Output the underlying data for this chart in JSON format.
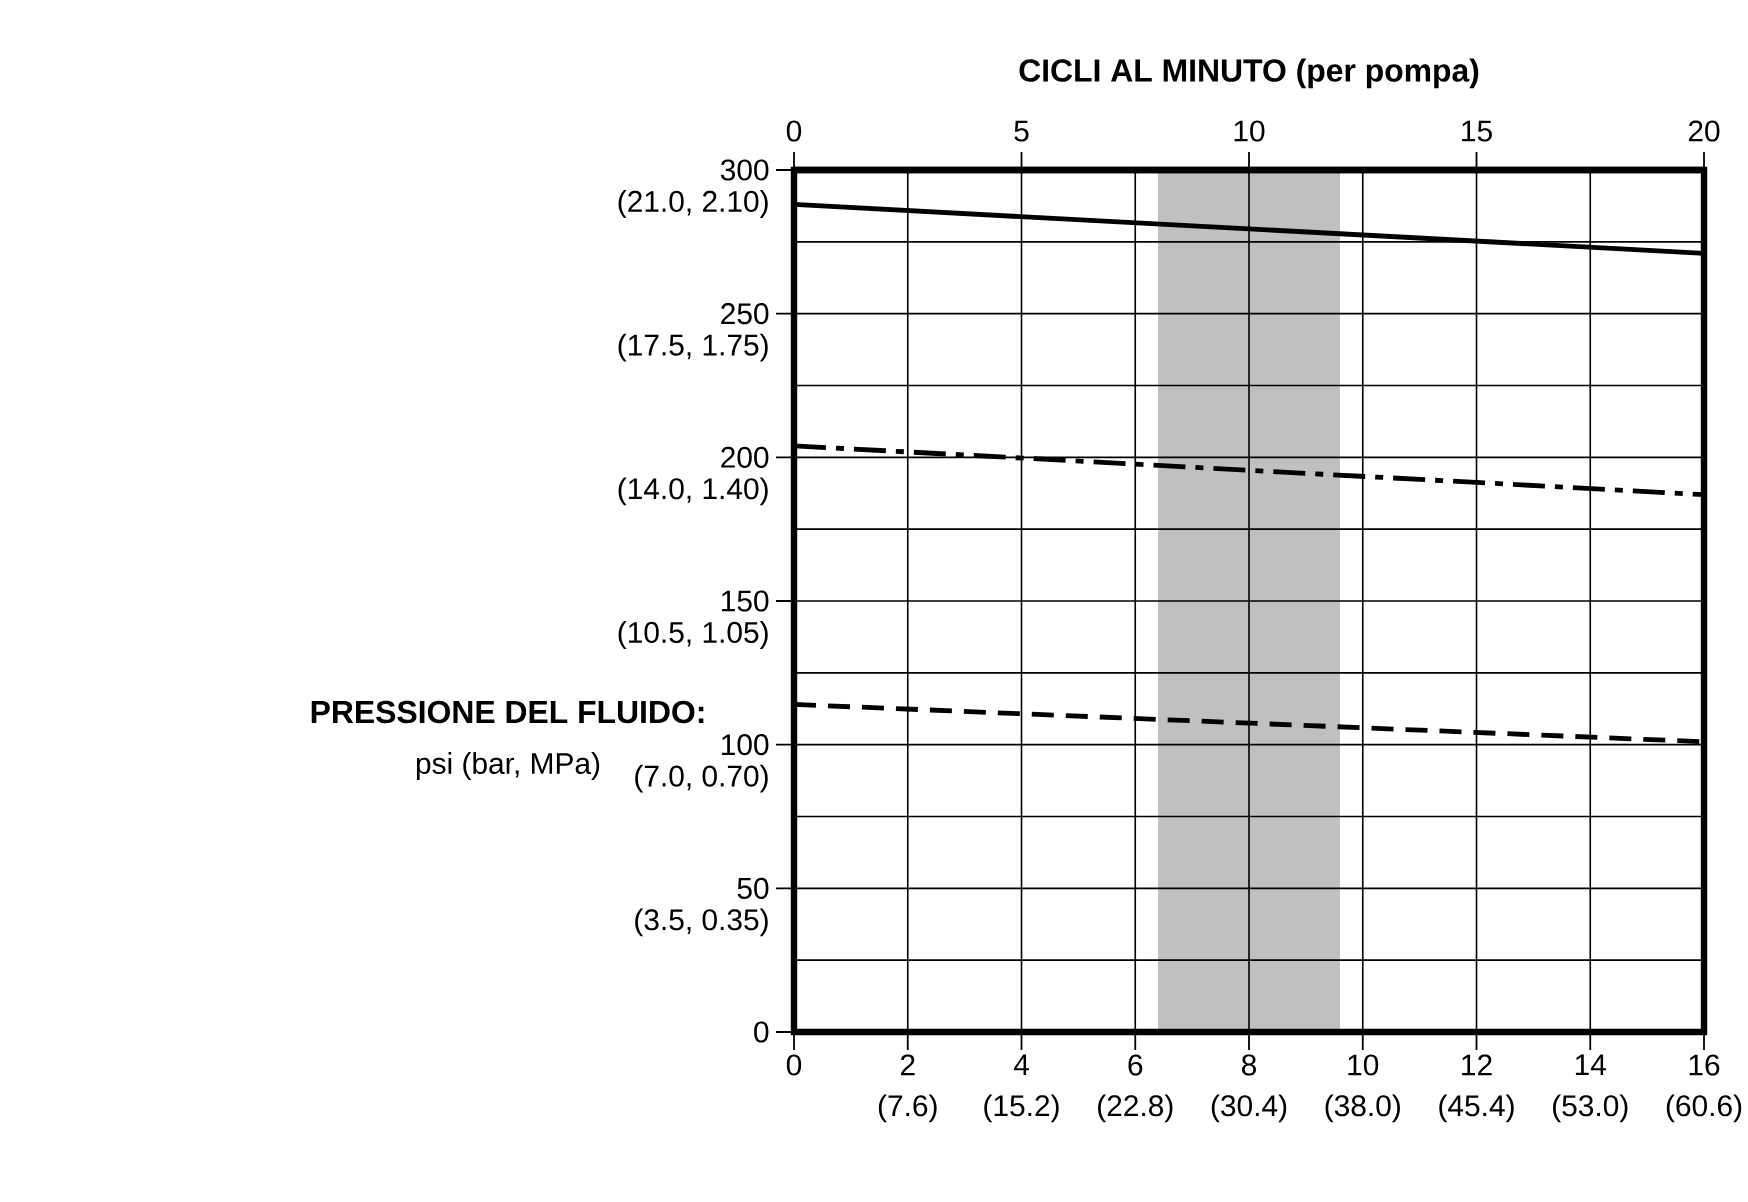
{
  "chart_data": {
    "type": "line",
    "x2label": "CICLI AL MINUTO (per pompa)",
    "ylabel": "PRESSIONE DEL FLUIDO:",
    "annotations": [
      "psi (bar, MPa)",
      "(7.6)",
      "(15.2)",
      "(22.8)",
      "(30.4)",
      "(38.0)",
      "(45.4)",
      "(53.0)",
      "(60.6)",
      "(3.5, 0.35)",
      "(7.0, 0.70)",
      "(10.5, 1.05)",
      "(14.0, 1.40)",
      "(17.5, 1.75)",
      "(21.0, 2.10)"
    ],
    "x": [
      0,
      16
    ],
    "series": [
      {
        "color": "#000000",
        "line_style": "solid",
        "values": [
          288,
          271
        ]
      },
      {
        "color": "#000000",
        "line_style": "dashdot",
        "values": [
          204,
          187
        ]
      },
      {
        "color": "#000000",
        "line_style": "dashed",
        "values": [
          114,
          101
        ]
      }
    ],
    "xlim": [
      0,
      16
    ],
    "xticks": [
      0,
      2,
      4,
      6,
      8,
      10,
      12,
      14,
      16
    ],
    "x2lim": [
      0,
      20
    ],
    "x2ticks": [
      0,
      5,
      10,
      15,
      20
    ],
    "ylim": [
      0,
      300
    ],
    "yticks": [
      0,
      50,
      100,
      150,
      200,
      250,
      300
    ],
    "bands": [
      {
        "axis": "x",
        "from": 6.4,
        "to": 9.6,
        "color": "#c0c0c0"
      }
    ],
    "grid": true,
    "marker": "none"
  }
}
